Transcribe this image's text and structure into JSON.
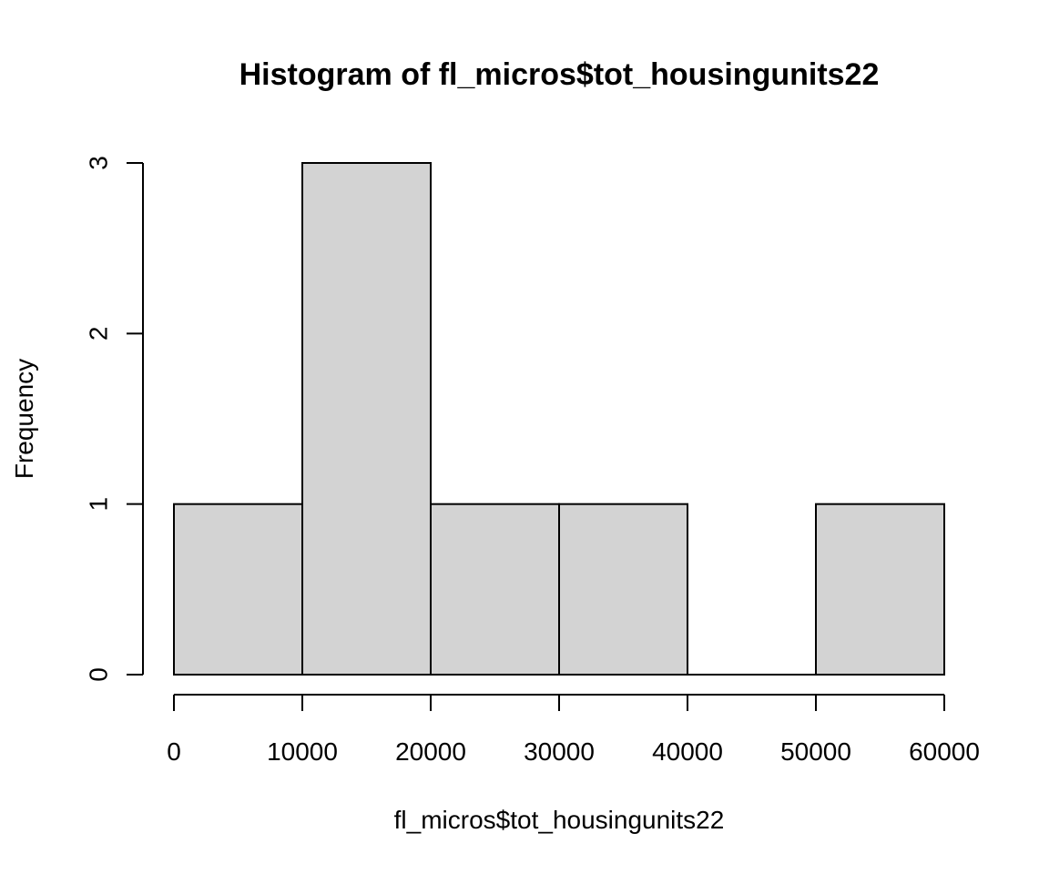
{
  "chart_data": {
    "type": "bar",
    "subtype": "histogram",
    "title": "Histogram of fl_micros$tot_housingunits22",
    "xlabel": "fl_micros$tot_housingunits22",
    "ylabel": "Frequency",
    "bins": [
      {
        "from": 0,
        "to": 10000,
        "count": 1
      },
      {
        "from": 10000,
        "to": 20000,
        "count": 3
      },
      {
        "from": 20000,
        "to": 30000,
        "count": 1
      },
      {
        "from": 30000,
        "to": 40000,
        "count": 1
      },
      {
        "from": 40000,
        "to": 50000,
        "count": 0
      },
      {
        "from": 50000,
        "to": 60000,
        "count": 1
      }
    ],
    "x_ticks": [
      "0",
      "10000",
      "20000",
      "30000",
      "40000",
      "50000",
      "60000"
    ],
    "y_ticks": [
      "0",
      "1",
      "2",
      "3"
    ],
    "xlim": [
      0,
      60000
    ],
    "ylim": [
      0,
      3
    ],
    "grid": false,
    "legend": "none",
    "bar_fill": "#d3d3d3",
    "bar_stroke": "#000000"
  }
}
